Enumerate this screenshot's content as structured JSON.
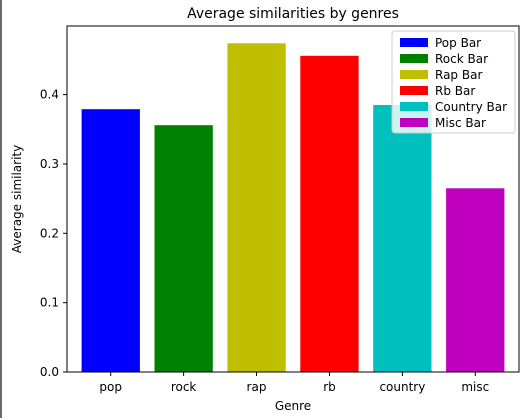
{
  "chart_data": {
    "type": "bar",
    "title": "Average similarities by genres",
    "xlabel": "Genre",
    "ylabel": "Average similarity",
    "categories": [
      "pop",
      "rock",
      "rap",
      "rb",
      "country",
      "misc"
    ],
    "values": [
      0.379,
      0.356,
      0.474,
      0.456,
      0.385,
      0.265
    ],
    "colors": [
      "#0000ff",
      "#008000",
      "#bfbf00",
      "#ff0000",
      "#00bfbf",
      "#bf00bf"
    ],
    "legend": [
      "Pop Bar",
      "Rock Bar",
      "Rap Bar",
      "Rb Bar",
      "Country Bar",
      "Misc Bar"
    ],
    "legend_position": "top-right",
    "ylim": [
      0,
      0.499
    ],
    "yticks": [
      0.0,
      0.1,
      0.2,
      0.3,
      0.4
    ],
    "ytick_labels": [
      "0.0",
      "0.1",
      "0.2",
      "0.3",
      "0.4"
    ],
    "grid": false
  }
}
